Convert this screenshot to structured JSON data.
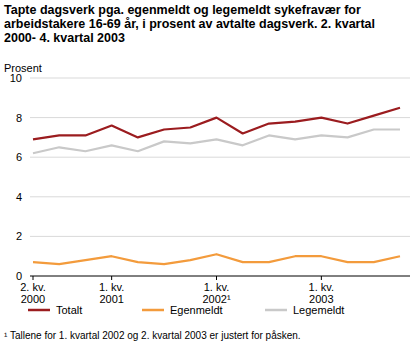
{
  "chart_data": {
    "type": "line",
    "title": "Tapte dagsverk pga. egenmeldt og legemeldt sykefravær for arbeidstakere 16-69 år, i prosent av avtalte dagsverk. 2. kvartal 2000- 4. kvartal 2003",
    "y_label": "Prosent",
    "footnote": "¹ Tallene for 1. kvartal 2002 og 2. kvartal 2003 er justert for påsken.",
    "categories": [
      "2. kv. 2000",
      null,
      null,
      "1. kv. 2001",
      null,
      null,
      null,
      "1. kv. 2002¹",
      null,
      null,
      null,
      "1. kv. 2003",
      null,
      null,
      null
    ],
    "series": [
      {
        "name": "Totalt",
        "color": "#9b1c1f",
        "values": [
          6.9,
          7.1,
          7.1,
          7.6,
          7.0,
          7.4,
          7.5,
          8.0,
          7.2,
          7.7,
          7.8,
          8.0,
          7.7,
          8.1,
          8.5
        ]
      },
      {
        "name": "Egenmeldt",
        "color": "#f39b3c",
        "values": [
          0.7,
          0.6,
          0.8,
          1.0,
          0.7,
          0.6,
          0.8,
          1.1,
          0.7,
          0.7,
          1.0,
          1.0,
          0.7,
          0.7,
          1.0
        ]
      },
      {
        "name": "Legemeldt",
        "color": "#c9c9c9",
        "values": [
          6.2,
          6.5,
          6.3,
          6.6,
          6.3,
          6.8,
          6.7,
          6.9,
          6.6,
          7.1,
          6.9,
          7.1,
          7.0,
          7.4,
          7.4
        ]
      }
    ],
    "ylim": [
      0,
      10
    ],
    "yticks": [
      0,
      2,
      4,
      6,
      8,
      10
    ],
    "grid": true,
    "legend": "bottom"
  }
}
